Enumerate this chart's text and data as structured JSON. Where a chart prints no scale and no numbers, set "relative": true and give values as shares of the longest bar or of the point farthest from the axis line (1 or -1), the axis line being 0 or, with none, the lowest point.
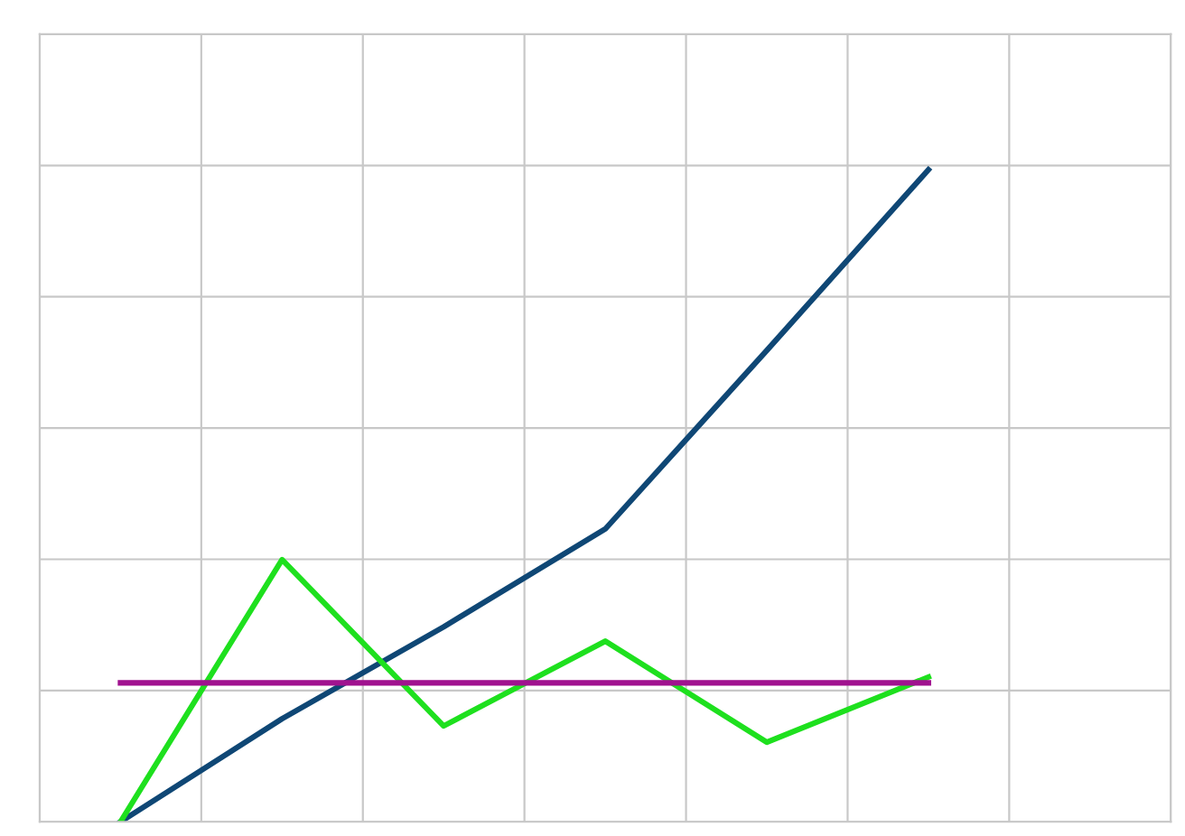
{
  "chart_data": {
    "type": "line",
    "relative": true,
    "grid": true,
    "marker": "none",
    "line_style": "solid",
    "categories": [
      null,
      null,
      null,
      null,
      null,
      null
    ],
    "series": [
      {
        "color": "#0f4775",
        "values": [
          0,
          0.158,
          0.299,
          0.449,
          0.723,
          1
        ]
      },
      {
        "color": "#1ee01e",
        "values": [
          0,
          0.402,
          0.147,
          0.277,
          0.122,
          0.222
        ]
      },
      {
        "color": "#a0128f",
        "values": [
          0.213,
          0.213,
          0.213,
          0.213,
          0.213,
          0.213
        ]
      }
    ]
  }
}
